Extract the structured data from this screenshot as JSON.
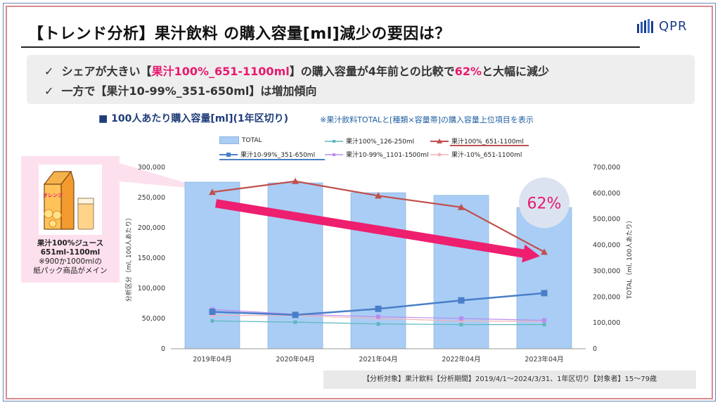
{
  "title": "【トレンド分析】果汁飲料 の購入容量[ml]減少の要因は？",
  "logo_text": "QPR",
  "summary": {
    "line1": {
      "check": "✓",
      "pre": "シェアが大きい【",
      "highlight1": "果汁100%_651-1100ml",
      "mid": "】の購入容量が4年前との比較で",
      "highlight2": "62%",
      "post": "と大幅に減少"
    },
    "line2": {
      "check": "✓",
      "text": "一方で【果汁10-99%_351-650ml】は増加傾向"
    }
  },
  "chart_heading": "■ 100人あたり購入容量[ml](1年区切り)",
  "chart_note": "※果汁飲料TOTALと[種類×容量帯]の購入容量上位項目を表示",
  "juice_panel": {
    "title1": "果汁100%ジュース",
    "title2": "651ml-1100ml",
    "note1": "※900か1000mlの",
    "note2": "紙パック商品がメイン",
    "pack_label": "オレンジ"
  },
  "callout": "62%",
  "source": "【分析対象】果汁飲料【分析期間】2019/4/1～2024/3/31、1年区切り【対象者】15～79歳",
  "colors": {
    "bar": "#a9cdf5",
    "red": "#c0504d",
    "blue": "#4a7fc8",
    "teal": "#5cb8bd",
    "purple": "#b98cf0",
    "pink": "#f2b2b8",
    "arrow": "#ee1f6f"
  },
  "chart_data": {
    "type": "bar",
    "categories": [
      "2019年04月",
      "2020年04月",
      "2021年04月",
      "2022年04月",
      "2023年04月"
    ],
    "ylabel": "分析区分（ml, 100人あたり）",
    "y2label": "TOTAL（ml, 100人あたり）",
    "ylim": [
      0,
      300000
    ],
    "y2lim": [
      0,
      700000
    ],
    "yticks": [
      "0",
      "50,000",
      "100,000",
      "150,000",
      "200,000",
      "250,000",
      "300,000"
    ],
    "y2ticks": [
      "0",
      "100,000",
      "200,000",
      "300,000",
      "400,000",
      "500,000",
      "600,000",
      "700,000"
    ],
    "bar_series": {
      "name": "TOTAL",
      "axis": "right",
      "values": [
        643000,
        640000,
        602000,
        592000,
        545000
      ]
    },
    "series": [
      {
        "name": "果汁100%_126-250ml",
        "values": [
          46000,
          44000,
          41000,
          40000,
          40000
        ]
      },
      {
        "name": "果汁100%_651-1100ml",
        "values": [
          259000,
          277000,
          253000,
          234000,
          160000
        ]
      },
      {
        "name": "果汁10-99%_351-650ml",
        "values": [
          61000,
          56000,
          66000,
          80000,
          92000
        ]
      },
      {
        "name": "果汁10-99%_1101-1500ml",
        "values": [
          65000,
          57000,
          53000,
          50000,
          47000
        ]
      },
      {
        "name": "果汁-10%_651-1100ml",
        "values": [
          55000,
          55000,
          50000,
          46000,
          45000
        ]
      }
    ],
    "grid": false,
    "legend": "top"
  }
}
